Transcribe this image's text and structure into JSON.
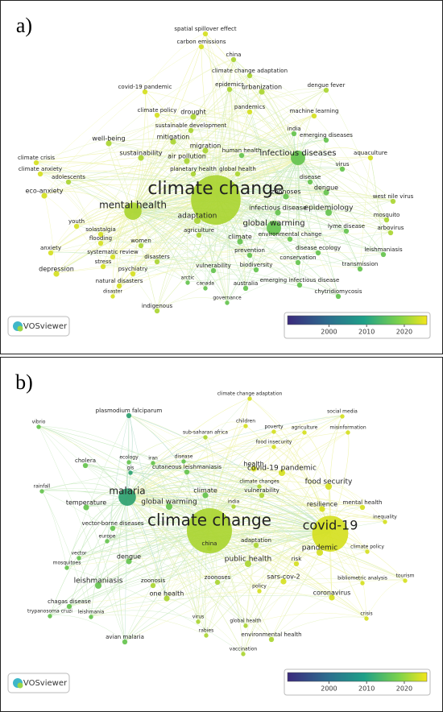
{
  "panels": [
    {
      "label": "a)",
      "nodes": [
        "spatial spillover effect",
        "carbon emissions",
        "china",
        "climate change adaptation",
        "covid-19 pandemic",
        "epidemics",
        "urbanization",
        "dengue fever",
        "pandemics",
        "machine learning",
        "climate policy",
        "drought",
        "sustainable development",
        "india",
        "emerging diseases",
        "mitigation",
        "well-being",
        "migration",
        "human health",
        "infectious diseases",
        "aquaculture",
        "climate crisis",
        "air pollution",
        "virus",
        "climate anxiety",
        "planetary health",
        "global health",
        "sustainability",
        "adolescents",
        "disease",
        "eco-anxiety",
        "climate change",
        "dengue",
        "zoonoses",
        "west nile virus",
        "mental health",
        "adaptation",
        "infectious disease",
        "epidemiology",
        "youth",
        "global warming",
        "lyme disease",
        "mosquito",
        "solastalgia",
        "agriculture",
        "arbovirus",
        "flooding",
        "climate",
        "environmental change",
        "women",
        "anxiety",
        "systematic review",
        "disasters",
        "prevention",
        "disease ecology",
        "leishmaniasis",
        "conservation",
        "stress",
        "depression",
        "psychiatry",
        "vulnerability",
        "biodiversity",
        "transmission",
        "natural disasters",
        "arctic",
        "canada",
        "australia",
        "emerging infectious disease",
        "disaster",
        "chytridiomycosis",
        "governance",
        "indigenous"
      ],
      "logo": "VOSviewer",
      "colorbar": {
        "lim": [
          1989,
          2026
        ],
        "ticks": [
          2000,
          2010,
          2020
        ]
      }
    },
    {
      "label": "b)",
      "nodes": [
        "climate change adaptation",
        "plasmodium falciparum",
        "vibrio",
        "children",
        "social media",
        "poverty",
        "agriculture",
        "misinformation",
        "sub-saharan africa",
        "food insecurity",
        "ecology",
        "iran",
        "disease",
        "cholera",
        "gis",
        "cutaneous leishmaniasis",
        "health",
        "covid-19 pandemic",
        "rainfall",
        "malaria",
        "climate",
        "india",
        "vulnerability",
        "food security",
        "climate changes",
        "temperature",
        "global warming",
        "resilience",
        "mental health",
        "climate change",
        "covid-19",
        "inequality",
        "vector-borne diseases",
        "europe",
        "china",
        "adaptation",
        "pandemic",
        "climate policy",
        "vector",
        "dengue",
        "public health",
        "risk",
        "mosquitoes",
        "leishmaniasis",
        "zoonosis",
        "zoonoses",
        "sars-cov-2",
        "bibliometric analysis",
        "tourism",
        "policy",
        "one health",
        "coronavirus",
        "chagas disease",
        "leishmania",
        "crisis",
        "trypanosoma cruzi",
        "virus",
        "global health",
        "rabies",
        "environmental health",
        "avian malaria",
        "vaccination"
      ],
      "logo": "VOSviewer",
      "colorbar": {
        "lim": [
          1989,
          2026
        ],
        "ticks": [
          2000,
          2010,
          2020
        ]
      }
    }
  ]
}
